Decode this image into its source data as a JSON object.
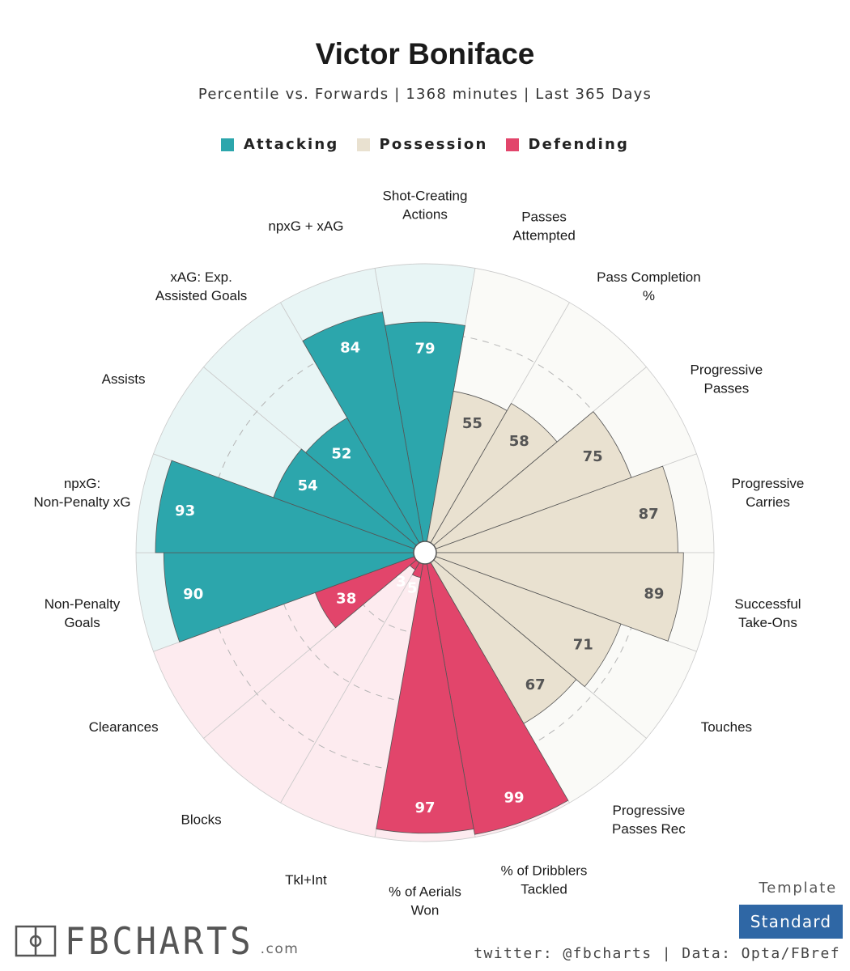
{
  "header": {
    "title": "Victor Boniface",
    "subtitle": "Percentile vs. Forwards | 1368 minutes | Last 365 Days"
  },
  "legend": [
    {
      "label": "Attacking",
      "color": "#2ca6ac"
    },
    {
      "label": "Possession",
      "color": "#e9e1d0"
    },
    {
      "label": "Defending",
      "color": "#e2456b"
    }
  ],
  "colors": {
    "attacking_bg": "#e8f5f5",
    "possession_bg": "#fafaf7",
    "defending_bg": "#fdebef",
    "value_text_light": "#ffffff",
    "value_text_dark": "#555555"
  },
  "chart_data": {
    "type": "radial-bar",
    "scale": [
      0,
      100
    ],
    "grid": true,
    "legend_position": "top-center",
    "categories": [
      {
        "label": "Shot-Creating Actions",
        "value": 79,
        "group": "Attacking"
      },
      {
        "label": "Passes Attempted",
        "value": 55,
        "group": "Possession"
      },
      {
        "label": "Pass Completion %",
        "value": 58,
        "group": "Possession"
      },
      {
        "label": "Progressive Passes",
        "value": 75,
        "group": "Possession"
      },
      {
        "label": "Progressive Carries",
        "value": 87,
        "group": "Possession"
      },
      {
        "label": "Successful Take-Ons",
        "value": 89,
        "group": "Possession"
      },
      {
        "label": "Touches",
        "value": 71,
        "group": "Possession"
      },
      {
        "label": "Progressive Passes Rec",
        "value": 67,
        "group": "Possession"
      },
      {
        "label": "% of Dribblers Tackled",
        "value": 99,
        "group": "Defending"
      },
      {
        "label": "% of Aerials Won",
        "value": 97,
        "group": "Defending"
      },
      {
        "label": "Tkl+Int",
        "value": 5,
        "group": "Defending"
      },
      {
        "label": "Blocks",
        "value": 3,
        "group": "Defending"
      },
      {
        "label": "Clearances",
        "value": 38,
        "group": "Defending"
      },
      {
        "label": "Non-Penalty Goals",
        "value": 90,
        "group": "Attacking"
      },
      {
        "label": "npxG: Non-Penalty xG",
        "value": 93,
        "group": "Attacking"
      },
      {
        "label": "Assists",
        "value": 54,
        "group": "Attacking"
      },
      {
        "label": "xAG: Exp. Assisted Goals",
        "value": 52,
        "group": "Attacking"
      },
      {
        "label": "npxG + xAG",
        "value": 84,
        "group": "Attacking"
      }
    ]
  },
  "branding": {
    "logo_text": "FBCHARTS",
    "logo_suffix": ".com",
    "template_label": "Template",
    "template_value": "Standard",
    "footer": "twitter: @fbcharts | Data: Opta/FBref"
  }
}
